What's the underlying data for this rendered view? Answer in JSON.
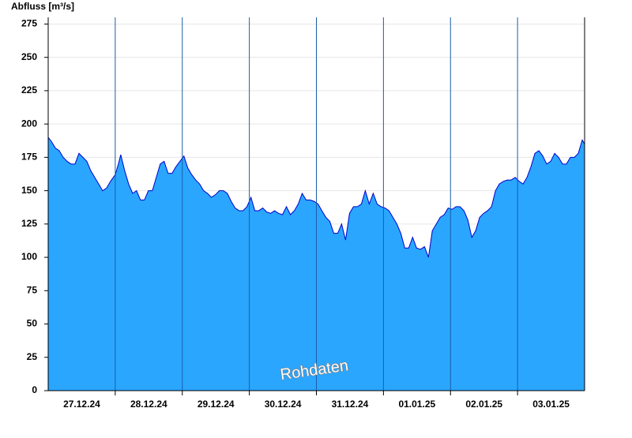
{
  "chart_data": {
    "type": "area",
    "y_label": "Abfluss [m³/s]",
    "watermark": "Rohdaten",
    "xlim": [
      0,
      8
    ],
    "ylim": [
      0,
      280
    ],
    "yticks": [
      0,
      25,
      50,
      75,
      100,
      125,
      150,
      175,
      200,
      225,
      250,
      275
    ],
    "xticks": [
      {
        "value": 0.5,
        "label": "27.12.24"
      },
      {
        "value": 1.5,
        "label": "28.12.24"
      },
      {
        "value": 2.5,
        "label": "29.12.24"
      },
      {
        "value": 3.5,
        "label": "30.12.24"
      },
      {
        "value": 4.5,
        "label": "31.12.24"
      },
      {
        "value": 5.5,
        "label": "01.01.25"
      },
      {
        "value": 6.5,
        "label": "02.01.25"
      },
      {
        "value": 7.5,
        "label": "03.01.25"
      }
    ],
    "xgrid": [
      1,
      2,
      3,
      4,
      5,
      6,
      7
    ],
    "grid": true,
    "fill_color": "#2aa6ff",
    "line_color": "#0000cc",
    "x": [
      0,
      0.047,
      0.106,
      0.165,
      0.224,
      0.282,
      0.341,
      0.4,
      0.459,
      0.518,
      0.576,
      0.635,
      0.694,
      0.753,
      0.812,
      0.871,
      0.929,
      1.0,
      1.047,
      1.082,
      1.141,
      1.2,
      1.259,
      1.318,
      1.376,
      1.435,
      1.494,
      1.553,
      1.612,
      1.671,
      1.729,
      1.788,
      1.847,
      1.906,
      1.965,
      2.024,
      2.082,
      2.141,
      2.2,
      2.259,
      2.318,
      2.376,
      2.435,
      2.494,
      2.553,
      2.612,
      2.671,
      2.729,
      2.788,
      2.847,
      2.906,
      2.965,
      3.024,
      3.082,
      3.141,
      3.2,
      3.259,
      3.318,
      3.376,
      3.435,
      3.494,
      3.553,
      3.612,
      3.671,
      3.729,
      3.788,
      3.847,
      3.906,
      3.965,
      4.024,
      4.082,
      4.141,
      4.2,
      4.259,
      4.318,
      4.376,
      4.435,
      4.494,
      4.553,
      4.612,
      4.671,
      4.729,
      4.788,
      4.847,
      4.906,
      4.965,
      5.024,
      5.082,
      5.141,
      5.2,
      5.259,
      5.318,
      5.376,
      5.435,
      5.494,
      5.553,
      5.612,
      5.671,
      5.729,
      5.788,
      5.847,
      5.906,
      5.965,
      6.024,
      6.082,
      6.141,
      6.2,
      6.259,
      6.318,
      6.376,
      6.435,
      6.494,
      6.553,
      6.612,
      6.671,
      6.729,
      6.788,
      6.847,
      6.906,
      6.965,
      7.024,
      7.082,
      7.141,
      7.2,
      7.259,
      7.318,
      7.376,
      7.435,
      7.494,
      7.553,
      7.612,
      7.671,
      7.729,
      7.788,
      7.847,
      7.906,
      7.965,
      8
    ],
    "values": [
      190,
      187,
      182,
      180,
      175,
      172,
      170,
      170,
      178,
      175,
      172,
      165,
      160,
      155,
      150,
      152,
      157,
      162,
      170,
      177,
      165,
      155,
      148,
      150,
      143,
      143,
      150,
      150,
      160,
      170,
      172,
      163,
      163,
      168,
      172,
      176,
      167,
      162,
      158,
      155,
      150,
      148,
      145,
      147,
      150,
      150,
      148,
      142,
      137,
      135,
      135,
      138,
      145,
      135,
      135,
      137,
      134,
      133,
      135,
      133,
      132,
      138,
      132,
      135,
      140,
      148,
      143,
      143,
      142,
      140,
      135,
      130,
      127,
      118,
      118,
      125,
      113,
      133,
      138,
      138,
      140,
      150,
      140,
      148,
      140,
      138,
      137,
      135,
      130,
      125,
      118,
      107,
      107,
      115,
      107,
      106,
      108,
      100,
      120,
      125,
      130,
      132,
      137,
      136,
      138,
      138,
      135,
      128,
      115,
      120,
      130,
      133,
      135,
      138,
      150,
      155,
      157,
      158,
      158,
      160,
      157,
      155,
      160,
      168,
      178,
      180,
      176,
      170,
      172,
      178,
      175,
      170,
      170,
      175,
      175,
      178,
      188,
      185
    ]
  }
}
